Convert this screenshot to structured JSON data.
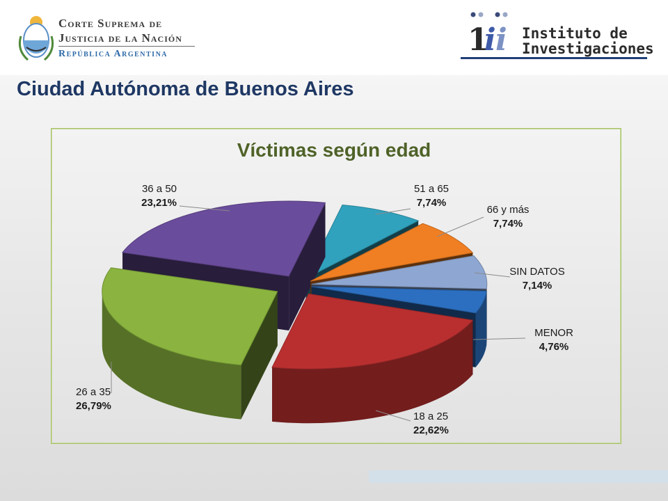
{
  "header": {
    "csjn": {
      "line1": "Corte Suprema de",
      "line2": "Justicia de la Nación",
      "line3": "República Argentina"
    },
    "instituto": {
      "line1": "Instituto de",
      "line2": "Investigaciones"
    }
  },
  "page_title": "Ciudad Autónoma de Buenos Aires",
  "colors": {
    "title": "#1f3864",
    "chart_title": "#4f6228",
    "frame_border": "#a6c35f"
  },
  "chart_data": {
    "type": "pie",
    "title": "Víctimas según edad",
    "categories": [
      "51 a 65",
      "66 y más",
      "SIN DATOS",
      "MENOR",
      "18 a 25",
      "26 a 35",
      "36 a 50"
    ],
    "values": [
      7.74,
      7.74,
      7.14,
      4.76,
      22.62,
      26.79,
      23.21
    ],
    "labels": [
      "7,74%",
      "7,74%",
      "7,14%",
      "4,76%",
      "22,62%",
      "26,79%",
      "23,21%"
    ],
    "colors": [
      "#31a2bd",
      "#f07f23",
      "#8ea7d2",
      "#2c6fc0",
      "#b92f2f",
      "#8ab43f",
      "#6a4c9c"
    ],
    "exploded": true,
    "style": "3d"
  }
}
